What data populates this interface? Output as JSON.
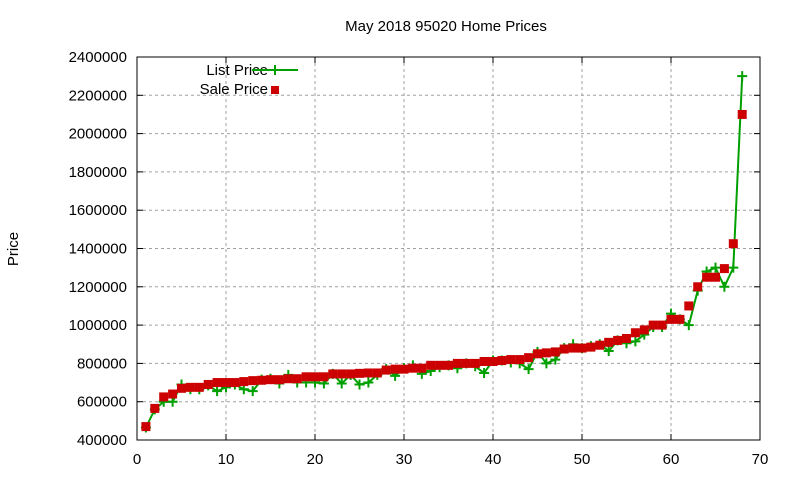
{
  "chart_data": {
    "type": "line",
    "title": "May 2018 95020 Home Prices",
    "xlabel": "",
    "ylabel": "Price",
    "xlim": [
      0,
      70
    ],
    "ylim": [
      400000,
      2400000
    ],
    "xticks": [
      0,
      10,
      20,
      30,
      40,
      50,
      60,
      70
    ],
    "yticks": [
      400000,
      600000,
      800000,
      1000000,
      1200000,
      1400000,
      1600000,
      1800000,
      2000000,
      2200000,
      2400000
    ],
    "grid": true,
    "legend_position": "top-left",
    "x": [
      1,
      2,
      3,
      4,
      5,
      6,
      7,
      8,
      9,
      10,
      11,
      12,
      13,
      14,
      15,
      16,
      17,
      18,
      19,
      20,
      21,
      22,
      23,
      24,
      25,
      26,
      27,
      28,
      29,
      30,
      31,
      32,
      33,
      34,
      35,
      36,
      37,
      38,
      39,
      40,
      41,
      42,
      43,
      44,
      45,
      46,
      47,
      48,
      49,
      50,
      51,
      52,
      53,
      54,
      55,
      56,
      57,
      58,
      59,
      60,
      61,
      62,
      63,
      64,
      65,
      66,
      67,
      68
    ],
    "series": [
      {
        "name": "List Price",
        "style": "linespoints",
        "color": "#00a000",
        "values": [
          465000,
          560000,
          600000,
          600000,
          690000,
          665000,
          665000,
          685000,
          655000,
          675000,
          690000,
          665000,
          655000,
          715000,
          720000,
          695000,
          740000,
          700000,
          700000,
          700000,
          695000,
          745000,
          695000,
          740000,
          690000,
          700000,
          740000,
          770000,
          735000,
          775000,
          790000,
          745000,
          760000,
          780000,
          790000,
          775000,
          800000,
          785000,
          750000,
          815000,
          815000,
          805000,
          800000,
          770000,
          860000,
          800000,
          820000,
          880000,
          900000,
          880000,
          890000,
          900000,
          865000,
          920000,
          905000,
          915000,
          950000,
          990000,
          990000,
          1060000,
          1030000,
          1000000,
          1180000,
          1280000,
          1300000,
          1200000,
          1300000,
          2300000
        ]
      },
      {
        "name": "Sale Price",
        "style": "points",
        "color": "#cc0000",
        "values": [
          470000,
          565000,
          625000,
          640000,
          670000,
          675000,
          675000,
          690000,
          700000,
          700000,
          700000,
          705000,
          710000,
          712000,
          715000,
          715000,
          720000,
          720000,
          730000,
          730000,
          730000,
          745000,
          745000,
          745000,
          748000,
          750000,
          750000,
          765000,
          770000,
          770000,
          775000,
          775000,
          790000,
          790000,
          790000,
          800000,
          800000,
          800000,
          810000,
          810000,
          815000,
          820000,
          820000,
          830000,
          850000,
          855000,
          860000,
          875000,
          880000,
          880000,
          885000,
          895000,
          910000,
          920000,
          930000,
          960000,
          975000,
          1000000,
          1000000,
          1030000,
          1030000,
          1100000,
          1200000,
          1250000,
          1250000,
          1295000,
          1425000,
          2100000
        ]
      }
    ]
  }
}
